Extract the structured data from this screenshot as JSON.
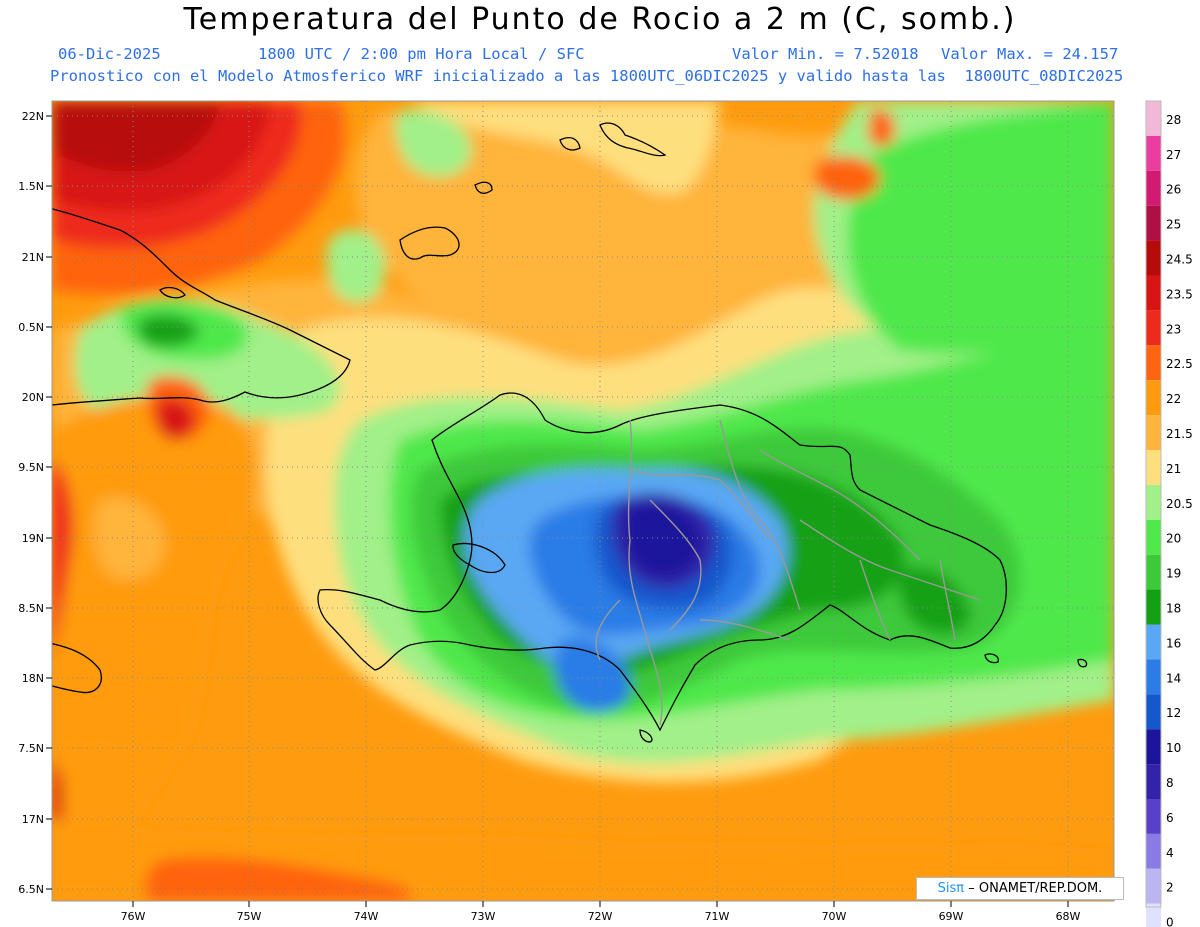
{
  "header": {
    "title": "Temperatura del Punto de Rocio a 2 m (C, somb.)",
    "date": "06-Dic-2025",
    "time": "1800 UTC / 2:00 pm Hora Local / SFC",
    "vmin": "Valor Min. = 7.52018",
    "vmax": "Valor Max. = 24.157",
    "model_line": "Pronostico con el Modelo Atmosferico WRF inicializado a las 1800UTC_06DIC2025 y valido hasta las  1800UTC_08DIC2025"
  },
  "axes": {
    "lat_labels": [
      "22N",
      "1.5N",
      "21N",
      "0.5N",
      "20N",
      "9.5N",
      "19N",
      "8.5N",
      "18N",
      "7.5N",
      "17N",
      "6.5N"
    ],
    "lon_labels": [
      "76W",
      "75W",
      "74W",
      "73W",
      "72W",
      "71W",
      "70W",
      "69W",
      "68W"
    ]
  },
  "colorbar": {
    "levels": [
      "28",
      "27",
      "26",
      "25",
      "24.5",
      "23.5",
      "23",
      "22.5",
      "22",
      "21.5",
      "21",
      "20.5",
      "20",
      "19",
      "18",
      "16",
      "14",
      "12",
      "10",
      "8",
      "6",
      "4",
      "2",
      "0"
    ],
    "colors": [
      "#f2b8d8",
      "#ea3d9f",
      "#d31a72",
      "#b00f45",
      "#b70b0b",
      "#d81414",
      "#ee2a1d",
      "#ff6410",
      "#ff9b0f",
      "#ffb43b",
      "#fedf7e",
      "#a2f089",
      "#50e84b",
      "#3ec93a",
      "#14a015",
      "#5aa8f4",
      "#2b7ce6",
      "#1557cc",
      "#1d149c",
      "#3323a8",
      "#5940c8",
      "#8a7ae4",
      "#bdb4f2",
      "#e0e0ff"
    ],
    "bottom_color": "#ffffff"
  },
  "credit": {
    "brand": "Sisπ",
    "text": "– ONAMET/REP.DOM."
  }
}
